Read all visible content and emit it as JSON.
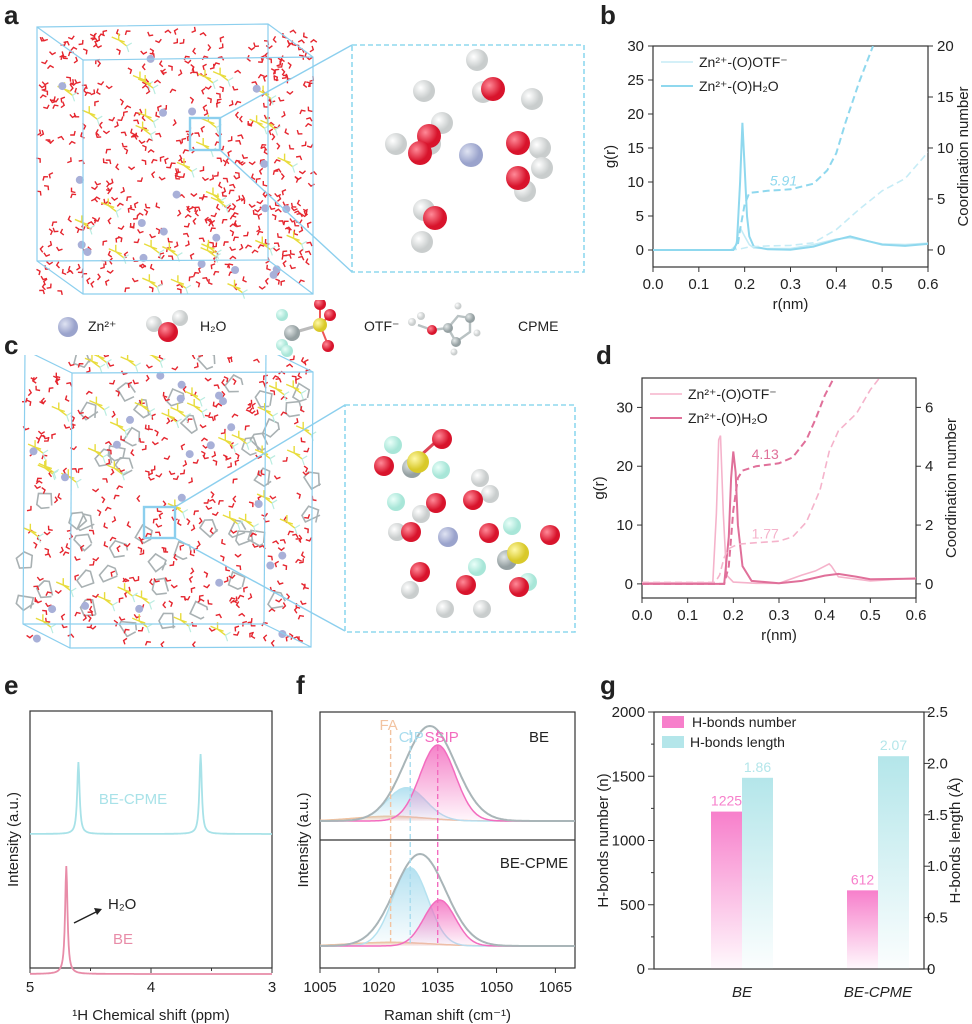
{
  "panels": {
    "a": {
      "label": "a"
    },
    "b": {
      "label": "b"
    },
    "c": {
      "label": "c"
    },
    "d": {
      "label": "d"
    },
    "e": {
      "label": "e"
    },
    "f": {
      "label": "f"
    },
    "g": {
      "label": "g"
    }
  },
  "species_legend": [
    {
      "name": "zn",
      "label": "Zn²⁺"
    },
    {
      "name": "h2o",
      "label": "H₂O"
    },
    {
      "name": "otf",
      "label": "OTF⁻"
    },
    {
      "name": "cpme",
      "label": "CPME"
    }
  ],
  "colors": {
    "blue": "#8fd8ee",
    "blue_light": "#c8eef7",
    "pink": "#e0709a",
    "pink_light": "#f5b3cb",
    "magenta": "#f36cbf",
    "cyan_bar": "#b4e6ea",
    "orange": "#f2c3a0",
    "grey": "#a9b5b8",
    "box": "#8ccfee"
  },
  "chart_data": [
    {
      "id": "b",
      "type": "line",
      "xlabel": "r(nm)",
      "ylabel": "g(r)",
      "y2label": "Coordination number",
      "xlim": [
        0.0,
        0.6
      ],
      "ylim": [
        -2.5,
        30
      ],
      "y2lim": [
        -1.67,
        20
      ],
      "xticks": [
        "0.0",
        "0.1",
        "0.2",
        "0.3",
        "0.4",
        "0.5",
        "0.6"
      ],
      "yticks": [
        "0",
        "5",
        "10",
        "15",
        "20",
        "25",
        "30"
      ],
      "y2ticks": [
        "0",
        "5",
        "10",
        "15",
        "20"
      ],
      "legend": [
        "Zn²⁺-(O)OTF⁻",
        "Zn²⁺-(O)H₂O"
      ],
      "legend_position": "top-left",
      "annotation": "5.91",
      "series": [
        {
          "name": "Zn-(O)OTF g(r)",
          "style": "solid-light",
          "x": [
            0,
            0.17,
            0.18,
            0.19,
            0.2,
            0.21,
            0.22,
            0.25,
            0.3,
            0.35,
            0.4,
            0.43,
            0.5,
            0.55,
            0.6
          ],
          "y": [
            0,
            0,
            0.6,
            3.3,
            2.0,
            0.8,
            0.3,
            0.2,
            0.2,
            0.8,
            1.6,
            1.8,
            0.9,
            0.8,
            1.0
          ]
        },
        {
          "name": "Zn-(O)H2O g(r)",
          "style": "solid",
          "x": [
            0,
            0.175,
            0.183,
            0.19,
            0.195,
            0.2,
            0.205,
            0.21,
            0.22,
            0.25,
            0.3,
            0.35,
            0.4,
            0.43,
            0.47,
            0.5,
            0.55,
            0.6
          ],
          "y": [
            0,
            0,
            1.0,
            10,
            18.7,
            12,
            5,
            2,
            0.5,
            0.1,
            0.05,
            0.5,
            1.5,
            2.0,
            1.3,
            0.8,
            0.6,
            0.9
          ]
        },
        {
          "name": "Zn-(O)OTF CN",
          "style": "dash-light",
          "axis": "y2",
          "x": [
            0,
            0.17,
            0.19,
            0.21,
            0.25,
            0.3,
            0.35,
            0.4,
            0.45,
            0.5,
            0.55,
            0.6
          ],
          "y": [
            0,
            0,
            0.1,
            0.3,
            0.4,
            0.45,
            0.7,
            2.0,
            4.0,
            5.8,
            7.0,
            9.6
          ]
        },
        {
          "name": "Zn-(O)H2O CN",
          "style": "dash",
          "axis": "y2",
          "x": [
            0,
            0.175,
            0.185,
            0.19,
            0.2,
            0.21,
            0.25,
            0.3,
            0.35,
            0.38,
            0.4,
            0.42,
            0.45,
            0.48
          ],
          "y": [
            0,
            0,
            0.5,
            2.0,
            4.5,
            5.6,
            5.8,
            5.95,
            6.5,
            7.8,
            9.5,
            12.5,
            16.5,
            20
          ]
        }
      ]
    },
    {
      "id": "d",
      "type": "line",
      "xlabel": "r(nm)",
      "ylabel": "g(r)",
      "y2label": "Coordination number",
      "xlim": [
        0.0,
        0.6
      ],
      "ylim": [
        -2.4,
        35
      ],
      "y2lim": [
        -0.48,
        7
      ],
      "xticks": [
        "0.0",
        "0.1",
        "0.2",
        "0.3",
        "0.4",
        "0.5",
        "0.6"
      ],
      "yticks": [
        "0",
        "10",
        "20",
        "30"
      ],
      "y2ticks": [
        "0",
        "2",
        "4",
        "6"
      ],
      "legend": [
        "Zn²⁺-(O)OTF⁻",
        "Zn²⁺-(O)H₂O"
      ],
      "legend_position": "top-left",
      "annotations": [
        "4.13",
        "1.77"
      ],
      "series": [
        {
          "name": "Zn-(O)OTF g(r)",
          "style": "solid-light",
          "x": [
            0,
            0.155,
            0.163,
            0.168,
            0.172,
            0.178,
            0.185,
            0.2,
            0.25,
            0.3,
            0.35,
            0.38,
            0.41,
            0.415,
            0.43,
            0.5,
            0.6
          ],
          "y": [
            0.2,
            0.2,
            12,
            24.5,
            25.2,
            12,
            1.5,
            0.3,
            0.1,
            0.1,
            1.5,
            2.2,
            3.4,
            3.0,
            1.2,
            0.5,
            1.0
          ]
        },
        {
          "name": "Zn-(O)H2O g(r)",
          "style": "solid",
          "x": [
            0,
            0.18,
            0.19,
            0.195,
            0.2,
            0.205,
            0.21,
            0.22,
            0.24,
            0.3,
            0.35,
            0.4,
            0.43,
            0.47,
            0.5,
            0.6
          ],
          "y": [
            0,
            0,
            8,
            18,
            22.5,
            19,
            10,
            3,
            0.5,
            0.1,
            0.5,
            1.4,
            1.7,
            1.2,
            0.8,
            0.9
          ]
        },
        {
          "name": "Zn-(O)OTF CN",
          "style": "dash-light",
          "axis": "y2",
          "x": [
            0,
            0.16,
            0.17,
            0.18,
            0.19,
            0.21,
            0.25,
            0.3,
            0.33,
            0.36,
            0.39,
            0.41,
            0.43,
            0.47,
            0.5,
            0.52
          ],
          "y": [
            0.05,
            0.05,
            0.3,
            0.9,
            1.2,
            1.35,
            1.4,
            1.45,
            1.6,
            2.1,
            3.2,
            4.5,
            5.2,
            5.8,
            6.6,
            7.0
          ]
        },
        {
          "name": "Zn-(O)H2O CN",
          "style": "dash",
          "axis": "y2",
          "x": [
            0,
            0.18,
            0.19,
            0.2,
            0.21,
            0.22,
            0.25,
            0.3,
            0.33,
            0.36,
            0.38,
            0.4,
            0.42
          ],
          "y": [
            0,
            0,
            0.6,
            2.5,
            3.6,
            3.85,
            4.0,
            4.1,
            4.3,
            4.9,
            5.6,
            6.4,
            7.0
          ]
        }
      ]
    },
    {
      "id": "e",
      "type": "line",
      "xlabel": "¹H Chemical shift (ppm)",
      "ylabel": "Intensity (a.u.)",
      "xlim": [
        5,
        3
      ],
      "xticks": [
        "5",
        "4",
        "3"
      ],
      "series": [
        {
          "name": "BE-CPME",
          "label": "BE-CPME",
          "peaks_ppm": [
            4.6,
            3.59
          ],
          "peak_heights": [
            0.9,
            1.0
          ]
        },
        {
          "name": "BE",
          "label": "BE",
          "peaks_ppm": [
            4.7
          ],
          "peak_heights": [
            1.2
          ]
        }
      ],
      "annotation": "H₂O"
    },
    {
      "id": "f",
      "type": "area",
      "xlabel": "Raman shift (cm⁻¹)",
      "ylabel": "Intensity (a.u.)",
      "xlim": [
        1005,
        1070
      ],
      "xticks": [
        "1005",
        "1020",
        "1035",
        "1050",
        "1065"
      ],
      "reference_lines": [
        {
          "label": "FA",
          "x": 1023
        },
        {
          "label": "CIP",
          "x": 1028
        },
        {
          "label": "SSIP",
          "x": 1035
        }
      ],
      "subplots": [
        {
          "label": "BE",
          "components": [
            {
              "name": "FA",
              "center": 1023,
              "height": 0.05,
              "width": 9
            },
            {
              "name": "CIP",
              "center": 1027,
              "height": 0.35,
              "width": 5
            },
            {
              "name": "SSIP",
              "center": 1035,
              "height": 0.8,
              "width": 4.5
            },
            {
              "name": "Total",
              "center": 1033,
              "height": 1.0,
              "width": 6.5
            }
          ]
        },
        {
          "label": "BE-CPME",
          "components": [
            {
              "name": "FA",
              "center": 1023,
              "height": 0.04,
              "width": 10
            },
            {
              "name": "CIP",
              "center": 1028,
              "height": 0.85,
              "width": 4.5
            },
            {
              "name": "SSIP",
              "center": 1035.5,
              "height": 0.5,
              "width": 4
            },
            {
              "name": "Total",
              "center": 1030.5,
              "height": 1.0,
              "width": 6.5
            }
          ]
        }
      ]
    },
    {
      "id": "g",
      "type": "bar",
      "categories": [
        "BE",
        "BE-CPME"
      ],
      "ylabel": "H-bonds number (n)",
      "y2label": "H-bonds length (Å)",
      "ylim": [
        0,
        2000
      ],
      "y2lim": [
        0,
        2.5
      ],
      "yticks": [
        "0",
        "500",
        "1000",
        "1500",
        "2000"
      ],
      "y2ticks": [
        "0",
        "0.5",
        "1.0",
        "1.5",
        "2.0",
        "2.5"
      ],
      "legend": [
        "H-bonds number",
        "H-bonds length"
      ],
      "legend_position": "top-left",
      "series": [
        {
          "name": "H-bonds number",
          "axis": "y",
          "values": [
            1225,
            612
          ],
          "labels": [
            "1225",
            "612"
          ]
        },
        {
          "name": "H-bonds length",
          "axis": "y2",
          "values": [
            1.86,
            2.07
          ],
          "labels": [
            "1.86",
            "2.07"
          ]
        }
      ]
    }
  ]
}
